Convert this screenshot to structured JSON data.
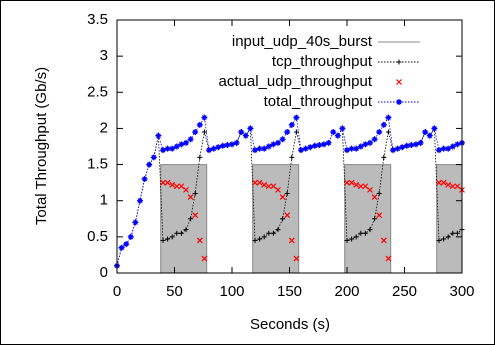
{
  "chart_data": {
    "type": "line",
    "xlabel": "Seconds (s)",
    "ylabel": "Total Throughput (Gb/s)",
    "xlim": [
      0,
      300
    ],
    "ylim": [
      0,
      3.5
    ],
    "xticks": [
      0,
      50,
      100,
      150,
      200,
      250,
      300
    ],
    "yticks": [
      0,
      0.5,
      1,
      1.5,
      2,
      2.5,
      3,
      3.5
    ],
    "legend": "top-center",
    "series": [
      {
        "name": "input_udp_40s_burst",
        "color": "#888888",
        "style": "area",
        "x": [
          0,
          38,
          38,
          78,
          78,
          118,
          118,
          158,
          158,
          198,
          198,
          238,
          238,
          278,
          278,
          300
        ],
        "values": [
          0,
          0,
          1.5,
          1.5,
          0,
          0,
          1.5,
          1.5,
          0,
          0,
          1.5,
          1.5,
          0,
          0,
          1.5,
          1.5
        ]
      },
      {
        "name": "tcp_throughput",
        "color": "#000000",
        "style": "linespoints",
        "x": [
          0,
          4,
          8,
          12,
          16,
          20,
          24,
          28,
          32,
          36,
          40,
          44,
          48,
          52,
          56,
          60,
          64,
          68,
          72,
          76,
          80,
          84,
          88,
          92,
          96,
          100,
          104,
          108,
          112,
          116,
          120,
          124,
          128,
          132,
          136,
          140,
          144,
          148,
          152,
          156,
          160,
          164,
          168,
          172,
          176,
          180,
          184,
          188,
          192,
          196,
          200,
          204,
          208,
          212,
          216,
          220,
          224,
          228,
          232,
          236,
          240,
          244,
          248,
          252,
          256,
          260,
          264,
          268,
          272,
          276,
          280,
          284,
          288,
          292,
          296,
          300
        ],
        "values": [
          0.1,
          0.35,
          0.4,
          0.5,
          0.7,
          1.0,
          1.3,
          1.5,
          1.6,
          1.9,
          0.45,
          0.47,
          0.5,
          0.55,
          0.55,
          0.6,
          0.75,
          1.1,
          1.6,
          1.95,
          1.7,
          1.72,
          1.74,
          1.76,
          1.77,
          1.78,
          1.8,
          1.95,
          1.9,
          2.0,
          0.45,
          0.47,
          0.5,
          0.55,
          0.55,
          0.6,
          0.75,
          1.1,
          1.6,
          1.95,
          1.7,
          1.72,
          1.74,
          1.76,
          1.77,
          1.78,
          1.8,
          1.95,
          1.9,
          2.0,
          0.45,
          0.47,
          0.5,
          0.55,
          0.55,
          0.6,
          0.75,
          1.1,
          1.6,
          1.95,
          1.7,
          1.72,
          1.74,
          1.76,
          1.77,
          1.78,
          1.8,
          1.95,
          1.9,
          2.0,
          0.45,
          0.47,
          0.5,
          0.55,
          0.55,
          0.6
        ]
      },
      {
        "name": "actual_udp_throughput",
        "color": "#ff0000",
        "style": "points",
        "x": [
          40,
          44,
          48,
          52,
          56,
          60,
          64,
          68,
          72,
          76,
          120,
          124,
          128,
          132,
          136,
          140,
          144,
          148,
          152,
          156,
          200,
          204,
          208,
          212,
          216,
          220,
          224,
          228,
          232,
          236,
          280,
          284,
          288,
          292,
          296,
          300
        ],
        "values": [
          1.25,
          1.25,
          1.22,
          1.2,
          1.2,
          1.15,
          1.05,
          0.8,
          0.45,
          0.2,
          1.25,
          1.25,
          1.22,
          1.2,
          1.2,
          1.15,
          1.05,
          0.8,
          0.45,
          0.2,
          1.25,
          1.25,
          1.22,
          1.2,
          1.2,
          1.15,
          1.05,
          0.8,
          0.45,
          0.2,
          1.25,
          1.25,
          1.22,
          1.2,
          1.2,
          1.15
        ]
      },
      {
        "name": "total_throughput",
        "color": "#0000ff",
        "style": "linespoints",
        "x": [
          0,
          4,
          8,
          12,
          16,
          20,
          24,
          28,
          32,
          36,
          40,
          44,
          48,
          52,
          56,
          60,
          64,
          68,
          72,
          76,
          80,
          84,
          88,
          92,
          96,
          100,
          104,
          108,
          112,
          116,
          120,
          124,
          128,
          132,
          136,
          140,
          144,
          148,
          152,
          156,
          160,
          164,
          168,
          172,
          176,
          180,
          184,
          188,
          192,
          196,
          200,
          204,
          208,
          212,
          216,
          220,
          224,
          228,
          232,
          236,
          240,
          244,
          248,
          252,
          256,
          260,
          264,
          268,
          272,
          276,
          280,
          284,
          288,
          292,
          296,
          300
        ],
        "values": [
          0.1,
          0.35,
          0.4,
          0.5,
          0.7,
          1.0,
          1.3,
          1.5,
          1.6,
          1.9,
          1.7,
          1.72,
          1.72,
          1.75,
          1.78,
          1.8,
          1.85,
          1.95,
          2.05,
          2.15,
          1.7,
          1.72,
          1.74,
          1.76,
          1.77,
          1.78,
          1.8,
          1.95,
          1.9,
          2.0,
          1.7,
          1.72,
          1.72,
          1.75,
          1.78,
          1.8,
          1.85,
          1.95,
          2.05,
          2.15,
          1.7,
          1.72,
          1.74,
          1.76,
          1.77,
          1.78,
          1.8,
          1.95,
          1.9,
          2.0,
          1.7,
          1.72,
          1.72,
          1.75,
          1.78,
          1.8,
          1.85,
          1.95,
          2.05,
          2.15,
          1.7,
          1.72,
          1.74,
          1.76,
          1.77,
          1.78,
          1.8,
          1.95,
          1.9,
          2.0,
          1.7,
          1.72,
          1.72,
          1.75,
          1.78,
          1.8
        ]
      }
    ]
  }
}
